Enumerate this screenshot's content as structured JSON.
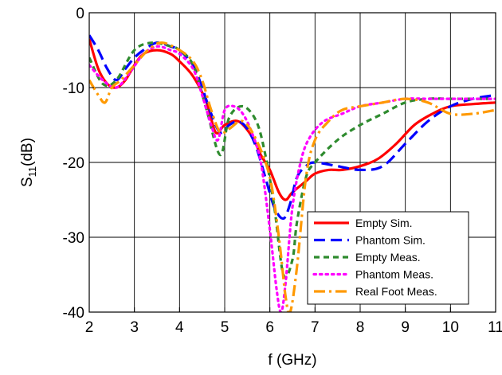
{
  "chart_data": {
    "type": "line",
    "title": "",
    "xlabel": "f (GHz)",
    "ylabel_main": "S",
    "ylabel_sub": "11",
    "ylabel_unit": "(dB)",
    "xlim": [
      2,
      11
    ],
    "ylim": [
      -40,
      0
    ],
    "xticks": [
      2,
      3,
      4,
      5,
      6,
      7,
      8,
      9,
      10,
      11
    ],
    "yticks": [
      0,
      -10,
      -20,
      -30,
      -40
    ],
    "grid": true,
    "legend_position": "bottom-right",
    "series": [
      {
        "name": "Empty Sim.",
        "color": "#ff0000",
        "dash": "solid",
        "x": [
          2.0,
          2.2,
          2.4,
          2.6,
          2.8,
          3.0,
          3.2,
          3.5,
          3.8,
          4.0,
          4.3,
          4.6,
          4.8,
          5.0,
          5.3,
          5.6,
          5.8,
          6.0,
          6.2,
          6.35,
          6.5,
          6.8,
          7.0,
          7.3,
          7.6,
          8.0,
          8.4,
          8.8,
          9.2,
          9.6,
          10.0,
          10.5,
          11.0
        ],
        "y": [
          -3.5,
          -7.5,
          -9.5,
          -10.0,
          -9.0,
          -7.0,
          -5.5,
          -5.0,
          -5.5,
          -6.5,
          -8.5,
          -12.0,
          -16.0,
          -15.0,
          -14.5,
          -16.5,
          -19.0,
          -21.0,
          -24.0,
          -25.0,
          -24.0,
          -22.5,
          -21.5,
          -21.0,
          -21.0,
          -20.5,
          -19.5,
          -17.5,
          -15.0,
          -13.5,
          -12.5,
          -12.2,
          -12.0
        ]
      },
      {
        "name": "Phantom Sim.",
        "color": "#0000ff",
        "dash": "dash",
        "x": [
          2.0,
          2.2,
          2.4,
          2.6,
          2.8,
          3.0,
          3.2,
          3.5,
          3.8,
          4.0,
          4.3,
          4.5,
          4.7,
          4.9,
          5.1,
          5.3,
          5.5,
          5.7,
          5.9,
          6.1,
          6.3,
          6.45,
          6.6,
          6.8,
          7.0,
          7.5,
          8.0,
          8.5,
          9.0,
          9.5,
          10.0,
          10.5,
          11.0
        ],
        "y": [
          -3.0,
          -5.0,
          -7.5,
          -9.0,
          -7.5,
          -6.0,
          -5.0,
          -4.0,
          -4.5,
          -5.0,
          -7.0,
          -10.0,
          -13.5,
          -16.0,
          -15.0,
          -14.5,
          -15.5,
          -18.0,
          -22.0,
          -26.0,
          -27.5,
          -25.5,
          -22.0,
          -20.5,
          -20.0,
          -20.5,
          -21.0,
          -20.5,
          -17.5,
          -14.5,
          -12.5,
          -11.5,
          -11.0
        ]
      },
      {
        "name": "Empty Meas.",
        "color": "#2e8b2e",
        "dash": "short-dash",
        "x": [
          2.0,
          2.3,
          2.6,
          3.0,
          3.4,
          3.8,
          4.0,
          4.3,
          4.6,
          4.9,
          5.1,
          5.4,
          5.7,
          5.9,
          6.1,
          6.3,
          6.5,
          6.6,
          6.8,
          7.0,
          7.5,
          8.0,
          8.5,
          9.0,
          9.5,
          10.0,
          10.5,
          11.0
        ],
        "y": [
          -6.0,
          -9.5,
          -9.0,
          -5.0,
          -4.0,
          -4.5,
          -5.0,
          -7.0,
          -13.0,
          -19.0,
          -14.0,
          -12.5,
          -14.5,
          -19.0,
          -26.0,
          -35.0,
          -33.0,
          -28.0,
          -22.0,
          -20.0,
          -17.0,
          -15.0,
          -13.5,
          -12.0,
          -11.5,
          -11.5,
          -11.5,
          -11.5
        ]
      },
      {
        "name": "Phantom Meas.",
        "color": "#ff00ff",
        "dash": "dot",
        "x": [
          2.0,
          2.3,
          2.6,
          2.9,
          3.2,
          3.5,
          3.8,
          4.0,
          4.3,
          4.5,
          4.7,
          4.85,
          5.0,
          5.2,
          5.4,
          5.6,
          5.8,
          6.0,
          6.15,
          6.25,
          6.35,
          6.5,
          6.7,
          6.9,
          7.2,
          7.6,
          8.0,
          8.5,
          9.0,
          9.5,
          10.0,
          11.0
        ],
        "y": [
          -7.0,
          -9.0,
          -10.0,
          -8.0,
          -5.5,
          -4.5,
          -5.0,
          -5.5,
          -7.5,
          -11.0,
          -15.0,
          -17.0,
          -13.0,
          -12.5,
          -13.5,
          -16.0,
          -20.0,
          -29.0,
          -37.0,
          -40.0,
          -36.0,
          -26.0,
          -19.5,
          -16.5,
          -14.5,
          -13.5,
          -12.5,
          -12.0,
          -11.5,
          -11.5,
          -11.5,
          -11.5
        ]
      },
      {
        "name": "Real Foot Meas.",
        "color": "#ff9900",
        "dash": "dash-dot",
        "x": [
          2.0,
          2.2,
          2.35,
          2.5,
          2.7,
          3.0,
          3.3,
          3.6,
          4.0,
          4.3,
          4.5,
          4.7,
          4.9,
          5.1,
          5.4,
          5.7,
          6.0,
          6.2,
          6.35,
          6.45,
          6.6,
          6.8,
          7.0,
          7.3,
          7.6,
          8.0,
          8.5,
          9.0,
          9.5,
          10.0,
          10.5,
          11.0
        ],
        "y": [
          -9.0,
          -11.0,
          -12.0,
          -10.0,
          -9.0,
          -7.0,
          -5.0,
          -4.0,
          -5.0,
          -6.5,
          -9.0,
          -13.0,
          -16.0,
          -15.5,
          -14.5,
          -17.0,
          -22.0,
          -30.0,
          -38.0,
          -40.0,
          -34.0,
          -22.0,
          -17.0,
          -14.5,
          -13.0,
          -12.5,
          -12.0,
          -11.5,
          -12.0,
          -13.5,
          -13.5,
          -13.0
        ]
      }
    ]
  }
}
